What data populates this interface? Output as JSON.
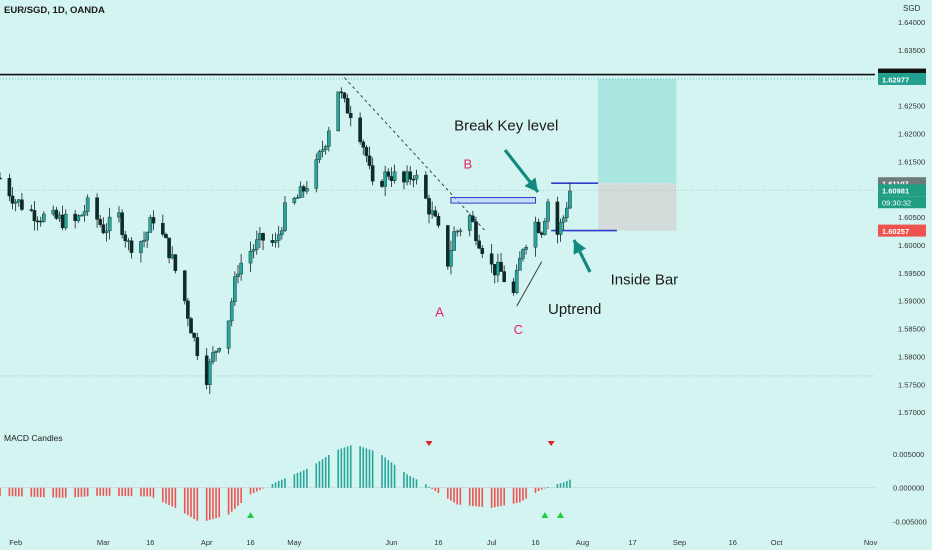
{
  "header": {
    "symbol_line": "EUR/SGD, 1D, OANDA",
    "currency": "SGD"
  },
  "price_axis": {
    "ticks": [
      "1.64000",
      "1.63500",
      "1.63000",
      "1.62500",
      "1.62000",
      "1.61500",
      "1.61000",
      "1.60500",
      "1.60000",
      "1.59500",
      "1.59000",
      "1.58500",
      "1.58000",
      "1.57500",
      "1.57000"
    ],
    "badges": {
      "key_level": "1.63056",
      "target": "1.62977",
      "break_level": "1.61107",
      "last_price": "1.60981",
      "countdown": "09:30:32",
      "stop": "1.60257"
    }
  },
  "macd_axis": {
    "ticks": [
      "0.005000",
      "0.000000",
      "-0.005000"
    ]
  },
  "time_axis": {
    "labels": [
      "Feb",
      "Mar",
      "16",
      "Apr",
      "16",
      "May",
      "Jun",
      "16",
      "Jul",
      "16",
      "Aug",
      "17",
      "Sep",
      "16",
      "Oct",
      "Nov"
    ]
  },
  "annotations": {
    "break_key_level": "Break Key level",
    "b": "B",
    "a": "A",
    "c": "C",
    "uptrend": "Uptrend",
    "inside_bar": "Inside Bar"
  },
  "indicator": {
    "name": "MACD Candles"
  },
  "colors": {
    "background": "#d4f4f1",
    "bull": "#26a69a",
    "bear": "#ef5350",
    "candle_dark": "#0e2a2a",
    "annotation_pink": "#e91e63",
    "arrow_teal": "#138a80",
    "target_zone": "#a8e6df",
    "stop_zone": "#d3dcdb",
    "level_blue": "#2c3dcc"
  },
  "chart_data": {
    "type": "candlestick",
    "title": "EUR/SGD, 1D, OANDA",
    "ylabel": "SGD",
    "ylim": [
      1.5668,
      1.6425
    ],
    "close_path": [
      {
        "d": "2023-01-27",
        "p": 1.612
      },
      {
        "d": "2023-02-01",
        "p": 1.608
      },
      {
        "d": "2023-02-06",
        "p": 1.606
      },
      {
        "d": "2023-02-10",
        "p": 1.605
      },
      {
        "d": "2023-02-15",
        "p": 1.6045
      },
      {
        "d": "2023-02-20",
        "p": 1.604
      },
      {
        "d": "2023-02-24",
        "p": 1.607
      },
      {
        "d": "2023-03-01",
        "p": 1.603
      },
      {
        "d": "2023-03-03",
        "p": 1.6035
      },
      {
        "d": "2023-03-06",
        "p": 1.605
      },
      {
        "d": "2023-03-09",
        "p": 1.6
      },
      {
        "d": "2023-03-14",
        "p": 1.601
      },
      {
        "d": "2023-03-17",
        "p": 1.605
      },
      {
        "d": "2023-03-22",
        "p": 1.599
      },
      {
        "d": "2023-03-27",
        "p": 1.59
      },
      {
        "d": "2023-03-30",
        "p": 1.583
      },
      {
        "d": "2023-04-03",
        "p": 1.5765
      },
      {
        "d": "2023-04-05",
        "p": 1.58
      },
      {
        "d": "2023-04-10",
        "p": 1.587
      },
      {
        "d": "2023-04-13",
        "p": 1.596
      },
      {
        "d": "2023-04-17",
        "p": 1.599
      },
      {
        "d": "2023-04-21",
        "p": 1.601
      },
      {
        "d": "2023-04-25",
        "p": 1.6
      },
      {
        "d": "2023-04-28",
        "p": 1.606
      },
      {
        "d": "2023-05-03",
        "p": 1.609
      },
      {
        "d": "2023-05-08",
        "p": 1.614
      },
      {
        "d": "2023-05-11",
        "p": 1.619
      },
      {
        "d": "2023-05-15",
        "p": 1.628
      },
      {
        "d": "2023-05-17",
        "p": 1.625
      },
      {
        "d": "2023-05-19",
        "p": 1.624
      },
      {
        "d": "2023-05-22",
        "p": 1.62
      },
      {
        "d": "2023-05-24",
        "p": 1.616
      },
      {
        "d": "2023-05-26",
        "p": 1.61
      },
      {
        "d": "2023-05-31",
        "p": 1.613
      },
      {
        "d": "2023-06-05",
        "p": 1.611
      },
      {
        "d": "2023-06-08",
        "p": 1.613
      },
      {
        "d": "2023-06-12",
        "p": 1.608
      },
      {
        "d": "2023-06-15",
        "p": 1.604
      },
      {
        "d": "2023-06-19",
        "p": 1.597
      },
      {
        "d": "2023-06-21",
        "p": 1.602
      },
      {
        "d": "2023-06-26",
        "p": 1.605
      },
      {
        "d": "2023-06-29",
        "p": 1.601
      },
      {
        "d": "2023-07-03",
        "p": 1.596
      },
      {
        "d": "2023-07-06",
        "p": 1.595
      },
      {
        "d": "2023-07-10",
        "p": 1.591
      },
      {
        "d": "2023-07-13",
        "p": 1.6
      },
      {
        "d": "2023-07-17",
        "p": 1.604
      },
      {
        "d": "2023-07-19",
        "p": 1.603
      },
      {
        "d": "2023-07-21",
        "p": 1.608
      },
      {
        "d": "2023-07-24",
        "p": 1.602
      },
      {
        "d": "2023-07-26",
        "p": 1.605
      },
      {
        "d": "2023-07-28",
        "p": 1.6098
      }
    ],
    "key_level": 1.63056,
    "target_level": 1.62977,
    "break_level": 1.61107,
    "last_price": 1.60981,
    "stop_level": 1.60257,
    "support_level": 1.5765,
    "macd": {
      "ylim": [
        -0.0063,
        0.0083
      ],
      "path": [
        {
          "d": "2023-01-27",
          "v": -0.0012
        },
        {
          "d": "2023-02-16",
          "v": -0.0015
        },
        {
          "d": "2023-02-28",
          "v": -0.0012
        },
        {
          "d": "2023-03-16",
          "v": -0.0013
        },
        {
          "d": "2023-03-24",
          "v": -0.003
        },
        {
          "d": "2023-04-01",
          "v": -0.0052
        },
        {
          "d": "2023-04-10",
          "v": -0.004
        },
        {
          "d": "2023-04-17",
          "v": -0.001
        },
        {
          "d": "2023-04-26",
          "v": 0.001
        },
        {
          "d": "2023-05-06",
          "v": 0.003
        },
        {
          "d": "2023-05-14",
          "v": 0.0055
        },
        {
          "d": "2023-05-20",
          "v": 0.0065
        },
        {
          "d": "2023-05-28",
          "v": 0.0052
        },
        {
          "d": "2023-06-06",
          "v": 0.002
        },
        {
          "d": "2023-06-12",
          "v": 0.0005
        },
        {
          "d": "2023-06-14",
          "v": -0.0002
        },
        {
          "d": "2023-06-22",
          "v": -0.0025
        },
        {
          "d": "2023-07-03",
          "v": -0.003
        },
        {
          "d": "2023-07-12",
          "v": -0.0022
        },
        {
          "d": "2023-07-18",
          "v": -0.0005
        },
        {
          "d": "2023-07-22",
          "v": 0.0003
        },
        {
          "d": "2023-07-26",
          "v": 0.0008
        },
        {
          "d": "2023-07-28",
          "v": 0.0012
        }
      ],
      "down_markers": [
        "2023-06-13",
        "2023-07-22"
      ],
      "up_markers": [
        "2023-04-17",
        "2023-07-20",
        "2023-07-25"
      ]
    },
    "trendlines": [
      {
        "kind": "dashed",
        "from": {
          "d": "2023-05-17",
          "p": 1.63
        },
        "to": {
          "d": "2023-07-01",
          "p": 1.6025
        }
      },
      {
        "kind": "solid",
        "from": {
          "d": "2023-07-11",
          "p": 1.589
        },
        "to": {
          "d": "2023-07-19",
          "p": 1.597
        }
      }
    ],
    "boxes": [
      {
        "kind": "break_zone",
        "from": "2023-06-20",
        "to": "2023-07-17",
        "top": 1.6085,
        "bottom": 1.6075
      }
    ],
    "position": {
      "from": "2023-08-06",
      "to": "2023-08-31",
      "entry": 1.61107,
      "target": 1.62977,
      "stop": 1.60257
    },
    "level_segments": [
      {
        "from": "2023-07-22",
        "to": "2023-08-06",
        "p": 1.61107
      },
      {
        "from": "2023-07-22",
        "to": "2023-08-12",
        "p": 1.60257
      }
    ],
    "x_ticks": [
      {
        "label": "Feb",
        "d": "2023-02-01"
      },
      {
        "label": "Mar",
        "d": "2023-03-01"
      },
      {
        "label": "16",
        "d": "2023-03-16"
      },
      {
        "label": "Apr",
        "d": "2023-04-03"
      },
      {
        "label": "16",
        "d": "2023-04-17"
      },
      {
        "label": "May",
        "d": "2023-05-01"
      },
      {
        "label": "Jun",
        "d": "2023-06-01"
      },
      {
        "label": "16",
        "d": "2023-06-16"
      },
      {
        "label": "Jul",
        "d": "2023-07-03"
      },
      {
        "label": "16",
        "d": "2023-07-17"
      },
      {
        "label": "Aug",
        "d": "2023-08-01"
      },
      {
        "label": "17",
        "d": "2023-08-17"
      },
      {
        "label": "Sep",
        "d": "2023-09-01"
      },
      {
        "label": "16",
        "d": "2023-09-18"
      },
      {
        "label": "Oct",
        "d": "2023-10-02"
      },
      {
        "label": "Nov",
        "d": "2023-11-01"
      }
    ],
    "annotation_points": {
      "b": {
        "d": "2023-06-24",
        "p": 1.6137
      },
      "a": {
        "d": "2023-06-15",
        "p": 1.5872
      },
      "c": {
        "d": "2023-07-10",
        "p": 1.584
      },
      "break_key_level": {
        "d": "2023-06-21",
        "p": 1.6205
      },
      "uptrend": {
        "d": "2023-07-21",
        "p": 1.5876
      },
      "inside_bar": {
        "d": "2023-08-10",
        "p": 1.5929
      }
    }
  }
}
